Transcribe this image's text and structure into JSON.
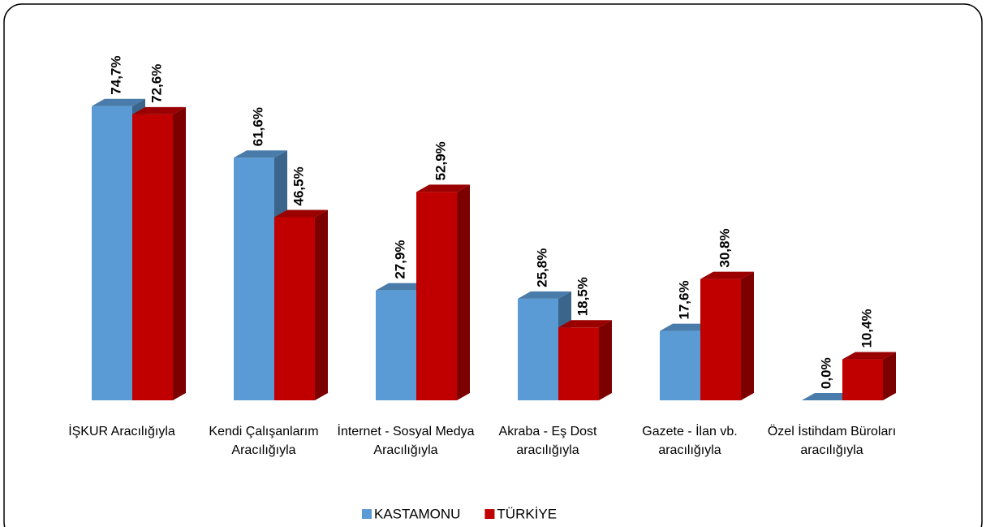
{
  "chart_data": {
    "type": "bar",
    "categories": [
      "İŞKUR Aracılığıyla",
      "Kendi Çalışanlarım Aracılığıyla",
      "İnternet - Sosyal Medya Aracılığıyla",
      "Akraba - Eş Dost aracılığıyla",
      "Gazete - İlan vb. aracılığıyla",
      "Özel İstihdam Büroları aracılığıyla"
    ],
    "series": [
      {
        "name": "KASTAMONU",
        "color": "#5b9bd5",
        "values": [
          74.7,
          61.6,
          27.9,
          25.8,
          17.6,
          0.0
        ],
        "value_labels": [
          "74,7%",
          "61,6%",
          "27,9%",
          "25,8%",
          "17,6%",
          "0,0%"
        ]
      },
      {
        "name": "TÜRKİYE",
        "color": "#c00000",
        "values": [
          72.6,
          46.5,
          52.9,
          18.5,
          30.8,
          10.4
        ],
        "value_labels": [
          "72,6%",
          "46,5%",
          "52,9%",
          "18,5%",
          "30,8%",
          "10,4%"
        ]
      }
    ],
    "legend": "bottom"
  }
}
